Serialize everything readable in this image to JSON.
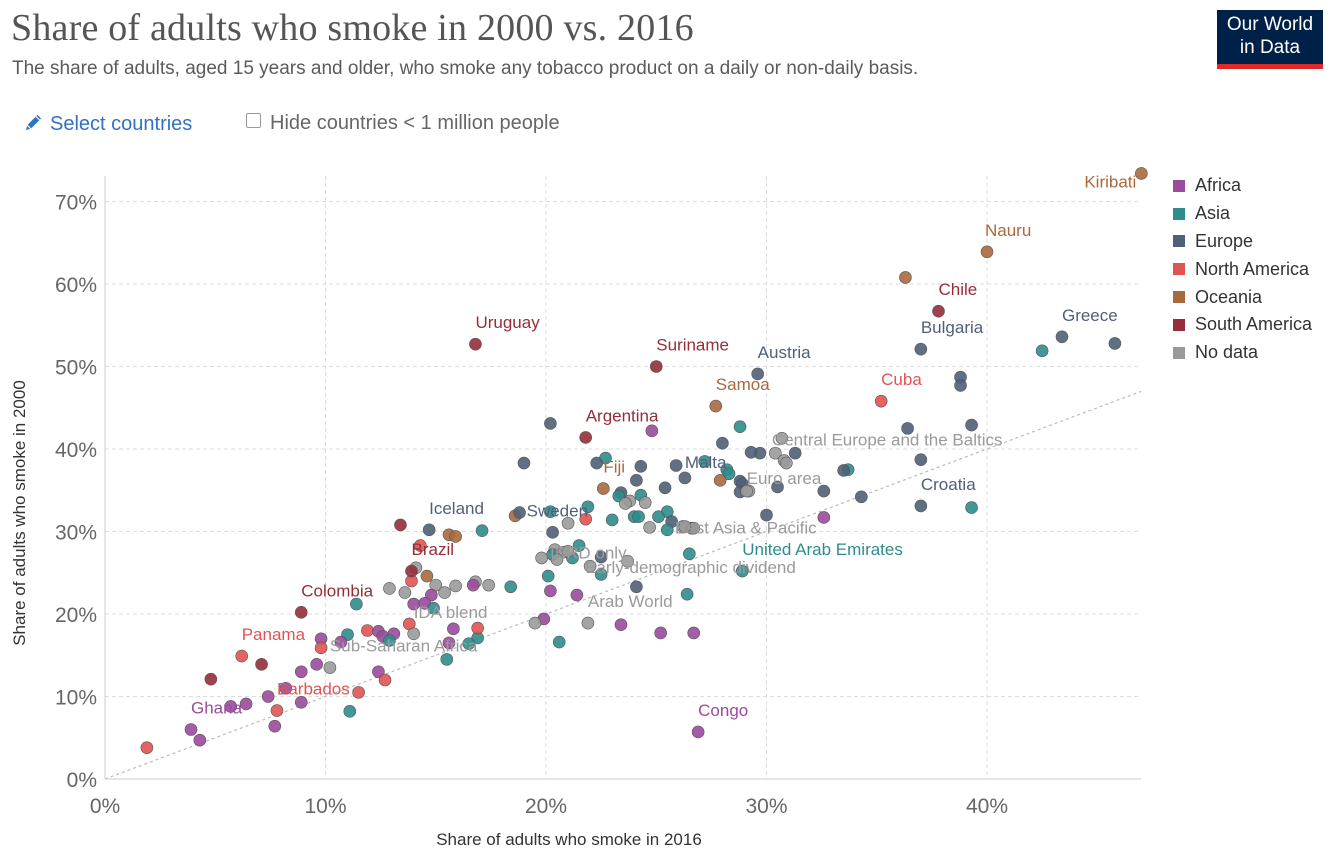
{
  "header": {
    "title": "Share of adults who smoke in 2000 vs. 2016",
    "subtitle": "The share of adults, aged 15 years and older, who smoke any tobacco product on a daily or non-daily basis.",
    "logo_line1": "Our World",
    "logo_line2": "in Data"
  },
  "controls": {
    "select_countries_label": "Select countries",
    "hide_small_label": "Hide countries < 1 million people"
  },
  "colors": {
    "Africa": "#9b4a9c",
    "Asia": "#2e8c8c",
    "Europe": "#505f78",
    "North America": "#e15353",
    "Oceania": "#a8693e",
    "South America": "#962d38",
    "No data": "#9a9a9a"
  },
  "chart_data": {
    "type": "scatter",
    "title": "Share of adults who smoke in 2000 vs. 2016",
    "xlabel": "Share of adults who smoke in 2016",
    "ylabel": "Share of adults who smoke in 2000",
    "xlim": [
      0,
      47
    ],
    "ylim": [
      0,
      73
    ],
    "x_ticks": [
      "0%",
      "10%",
      "20%",
      "30%",
      "40%"
    ],
    "y_ticks": [
      "0%",
      "10%",
      "20%",
      "30%",
      "40%",
      "50%",
      "60%",
      "70%"
    ],
    "grid": true,
    "legend_position": "right",
    "legend": [
      "Africa",
      "Asia",
      "Europe",
      "North America",
      "Oceania",
      "South America",
      "No data"
    ],
    "labeled_points": [
      {
        "label": "Kiribati",
        "region": "Oceania",
        "x": 47.0,
        "y": 73.4
      },
      {
        "label": "Nauru",
        "region": "Oceania",
        "x": 40.0,
        "y": 63.9
      },
      {
        "label": "Chile",
        "region": "South America",
        "x": 37.8,
        "y": 56.7
      },
      {
        "label": "Greece",
        "region": "Europe",
        "x": 43.4,
        "y": 53.6
      },
      {
        "label": "Bulgaria",
        "region": "Europe",
        "x": 37.0,
        "y": 52.1
      },
      {
        "label": "Uruguay",
        "region": "South America",
        "x": 16.8,
        "y": 52.7
      },
      {
        "label": "Suriname",
        "region": "South America",
        "x": 25.0,
        "y": 50.0
      },
      {
        "label": "Austria",
        "region": "Europe",
        "x": 29.6,
        "y": 49.1
      },
      {
        "label": "Cuba",
        "region": "North America",
        "x": 35.2,
        "y": 45.8
      },
      {
        "label": "Samoa",
        "region": "Oceania",
        "x": 27.7,
        "y": 45.2
      },
      {
        "label": "Argentina",
        "region": "South America",
        "x": 21.8,
        "y": 41.4
      },
      {
        "label": "Central Europe and the Baltics",
        "region": "No data",
        "x": 30.7,
        "y": 41.3
      },
      {
        "label": "Fiji",
        "region": "Oceania",
        "x": 22.6,
        "y": 35.2
      },
      {
        "label": "Malta",
        "region": "Europe",
        "x": 26.3,
        "y": 36.5
      },
      {
        "label": "Euro area",
        "region": "No data",
        "x": 29.1,
        "y": 34.9
      },
      {
        "label": "Croatia",
        "region": "Europe",
        "x": 37.0,
        "y": 33.1
      },
      {
        "label": "Sweden",
        "region": "Europe",
        "x": 20.3,
        "y": 29.9
      },
      {
        "label": "Iceland",
        "region": "Europe",
        "x": 14.7,
        "y": 30.2
      },
      {
        "label": "East Asia & Pacific",
        "region": "No data",
        "x": 26.3,
        "y": 30.6
      },
      {
        "label": "IBRD only",
        "region": "No data",
        "x": 21.0,
        "y": 27.6
      },
      {
        "label": "Brazil",
        "region": "South America",
        "x": 13.9,
        "y": 25.2
      },
      {
        "label": "United Arab Emirates",
        "region": "Asia",
        "x": 28.9,
        "y": 25.2
      },
      {
        "label": "Early-demographic dividend",
        "region": "No data",
        "x": 22.0,
        "y": 25.8
      },
      {
        "label": "Colombia",
        "region": "South America",
        "x": 8.9,
        "y": 20.2
      },
      {
        "label": "Arab World",
        "region": "No data",
        "x": 21.9,
        "y": 18.9
      },
      {
        "label": "IDA blend",
        "region": "No data",
        "x": 14.0,
        "y": 17.6
      },
      {
        "label": "Panama",
        "region": "North America",
        "x": 6.2,
        "y": 14.9
      },
      {
        "label": "Sub-Saharan Africa",
        "region": "No data",
        "x": 10.2,
        "y": 13.5
      },
      {
        "label": "Barbados",
        "region": "North America",
        "x": 7.8,
        "y": 8.3
      },
      {
        "label": "Ghana",
        "region": "Africa",
        "x": 3.9,
        "y": 6.0
      },
      {
        "label": "Congo",
        "region": "Africa",
        "x": 26.9,
        "y": 5.7
      }
    ],
    "points": [
      {
        "region": "Europe",
        "x": 45.8,
        "y": 52.8
      },
      {
        "region": "Asia",
        "x": 42.5,
        "y": 51.9
      },
      {
        "region": "Oceania",
        "x": 36.3,
        "y": 60.8
      },
      {
        "region": "Europe",
        "x": 38.8,
        "y": 48.7
      },
      {
        "region": "Europe",
        "x": 38.8,
        "y": 47.7
      },
      {
        "region": "Europe",
        "x": 39.3,
        "y": 42.9
      },
      {
        "region": "Europe",
        "x": 36.4,
        "y": 42.5
      },
      {
        "region": "Europe",
        "x": 37.0,
        "y": 38.7
      },
      {
        "region": "Asia",
        "x": 39.3,
        "y": 32.9
      },
      {
        "region": "Asia",
        "x": 33.7,
        "y": 37.5
      },
      {
        "region": "Europe",
        "x": 33.5,
        "y": 37.4
      },
      {
        "region": "Europe",
        "x": 34.3,
        "y": 34.2
      },
      {
        "region": "Europe",
        "x": 32.6,
        "y": 34.9
      },
      {
        "region": "Europe",
        "x": 31.3,
        "y": 39.5
      },
      {
        "region": "Europe",
        "x": 29.7,
        "y": 39.5
      },
      {
        "region": "No data",
        "x": 30.4,
        "y": 39.5
      },
      {
        "region": "No data",
        "x": 30.8,
        "y": 38.6
      },
      {
        "region": "No data",
        "x": 30.9,
        "y": 38.3
      },
      {
        "region": "Europe",
        "x": 30.5,
        "y": 35.4
      },
      {
        "region": "Asia",
        "x": 28.8,
        "y": 42.7
      },
      {
        "region": "Europe",
        "x": 29.3,
        "y": 39.6
      },
      {
        "region": "Europe",
        "x": 28.0,
        "y": 40.7
      },
      {
        "region": "Asia",
        "x": 27.2,
        "y": 38.5
      },
      {
        "region": "Asia",
        "x": 28.2,
        "y": 37.5
      },
      {
        "region": "Asia",
        "x": 28.3,
        "y": 37.0
      },
      {
        "region": "Oceania",
        "x": 27.9,
        "y": 36.2
      },
      {
        "region": "Europe",
        "x": 28.8,
        "y": 36.1
      },
      {
        "region": "Europe",
        "x": 28.9,
        "y": 35.8
      },
      {
        "region": "Europe",
        "x": 28.8,
        "y": 34.8
      },
      {
        "region": "No data",
        "x": 29.2,
        "y": 34.9
      },
      {
        "region": "Europe",
        "x": 30.0,
        "y": 32.0
      },
      {
        "region": "Africa",
        "x": 32.6,
        "y": 31.7
      },
      {
        "region": "Europe",
        "x": 24.3,
        "y": 37.9
      },
      {
        "region": "Europe",
        "x": 25.9,
        "y": 38.0
      },
      {
        "region": "Europe",
        "x": 24.1,
        "y": 36.2
      },
      {
        "region": "Europe",
        "x": 25.4,
        "y": 35.3
      },
      {
        "region": "Europe",
        "x": 23.4,
        "y": 34.7
      },
      {
        "region": "Asia",
        "x": 23.3,
        "y": 34.3
      },
      {
        "region": "Asia",
        "x": 24.3,
        "y": 34.4
      },
      {
        "region": "No data",
        "x": 23.8,
        "y": 33.7
      },
      {
        "region": "No data",
        "x": 24.5,
        "y": 33.5
      },
      {
        "region": "No data",
        "x": 23.6,
        "y": 33.4
      },
      {
        "region": "Asia",
        "x": 25.5,
        "y": 32.4
      },
      {
        "region": "Asia",
        "x": 25.1,
        "y": 31.8
      },
      {
        "region": "Asia",
        "x": 24.0,
        "y": 31.8
      },
      {
        "region": "Asia",
        "x": 24.2,
        "y": 31.8
      },
      {
        "region": "Europe",
        "x": 25.7,
        "y": 31.2
      },
      {
        "region": "Asia",
        "x": 23.0,
        "y": 31.4
      },
      {
        "region": "Asia",
        "x": 22.7,
        "y": 38.9
      },
      {
        "region": "Europe",
        "x": 22.3,
        "y": 38.3
      },
      {
        "region": "Europe",
        "x": 20.2,
        "y": 43.1
      },
      {
        "region": "Europe",
        "x": 19.0,
        "y": 38.3
      },
      {
        "region": "Africa",
        "x": 24.8,
        "y": 42.2
      },
      {
        "region": "Asia",
        "x": 21.9,
        "y": 33.0
      },
      {
        "region": "North America",
        "x": 21.8,
        "y": 31.5
      },
      {
        "region": "Asia",
        "x": 20.2,
        "y": 32.4
      },
      {
        "region": "No data",
        "x": 21.0,
        "y": 31.0
      },
      {
        "region": "No data",
        "x": 24.7,
        "y": 30.5
      },
      {
        "region": "Asia",
        "x": 25.5,
        "y": 30.2
      },
      {
        "region": "No data",
        "x": 26.2,
        "y": 30.6
      },
      {
        "region": "Europe",
        "x": 26.6,
        "y": 30.4
      },
      {
        "region": "No data",
        "x": 26.7,
        "y": 30.4
      },
      {
        "region": "Oceania",
        "x": 18.6,
        "y": 31.9
      },
      {
        "region": "Europe",
        "x": 18.8,
        "y": 32.3
      },
      {
        "region": "Asia",
        "x": 17.1,
        "y": 30.1
      },
      {
        "region": "South America",
        "x": 13.4,
        "y": 30.8
      },
      {
        "region": "Oceania",
        "x": 15.6,
        "y": 29.6
      },
      {
        "region": "Oceania",
        "x": 15.9,
        "y": 29.4
      },
      {
        "region": "Asia",
        "x": 21.5,
        "y": 28.3
      },
      {
        "region": "No data",
        "x": 20.4,
        "y": 27.8
      },
      {
        "region": "No data",
        "x": 20.8,
        "y": 27.5
      },
      {
        "region": "Asia",
        "x": 20.3,
        "y": 27.2
      },
      {
        "region": "No data",
        "x": 19.8,
        "y": 26.8
      },
      {
        "region": "No data",
        "x": 20.5,
        "y": 26.6
      },
      {
        "region": "Asia",
        "x": 21.2,
        "y": 26.8
      },
      {
        "region": "Europe",
        "x": 22.5,
        "y": 26.9
      },
      {
        "region": "No data",
        "x": 23.7,
        "y": 26.4
      },
      {
        "region": "Asia",
        "x": 26.5,
        "y": 27.3
      },
      {
        "region": "Asia",
        "x": 20.1,
        "y": 24.6
      },
      {
        "region": "Asia",
        "x": 22.5,
        "y": 24.8
      },
      {
        "region": "Asia",
        "x": 18.4,
        "y": 23.3
      },
      {
        "region": "No data",
        "x": 16.8,
        "y": 23.9
      },
      {
        "region": "No data",
        "x": 17.4,
        "y": 23.5
      },
      {
        "region": "No data",
        "x": 15.0,
        "y": 23.5
      },
      {
        "region": "No data",
        "x": 15.9,
        "y": 23.4
      },
      {
        "region": "Africa",
        "x": 16.7,
        "y": 23.5
      },
      {
        "region": "Europe",
        "x": 24.1,
        "y": 23.3
      },
      {
        "region": "Asia",
        "x": 26.4,
        "y": 22.4
      },
      {
        "region": "North America",
        "x": 14.3,
        "y": 28.3
      },
      {
        "region": "No data",
        "x": 14.1,
        "y": 25.6
      },
      {
        "region": "Oceania",
        "x": 14.6,
        "y": 24.6
      },
      {
        "region": "North America",
        "x": 13.9,
        "y": 24.0
      },
      {
        "region": "No data",
        "x": 12.9,
        "y": 23.1
      },
      {
        "region": "No data",
        "x": 13.6,
        "y": 22.6
      },
      {
        "region": "Africa",
        "x": 14.8,
        "y": 22.3
      },
      {
        "region": "No data",
        "x": 15.4,
        "y": 22.6
      },
      {
        "region": "Africa",
        "x": 14.0,
        "y": 21.2
      },
      {
        "region": "Africa",
        "x": 14.5,
        "y": 21.3
      },
      {
        "region": "Asia",
        "x": 14.9,
        "y": 20.7
      },
      {
        "region": "Asia",
        "x": 11.4,
        "y": 21.2
      },
      {
        "region": "Africa",
        "x": 20.2,
        "y": 22.8
      },
      {
        "region": "Africa",
        "x": 21.4,
        "y": 22.3
      },
      {
        "region": "Africa",
        "x": 19.9,
        "y": 19.4
      },
      {
        "region": "No data",
        "x": 19.5,
        "y": 18.9
      },
      {
        "region": "Africa",
        "x": 23.4,
        "y": 18.7
      },
      {
        "region": "Africa",
        "x": 25.2,
        "y": 17.7
      },
      {
        "region": "Africa",
        "x": 26.7,
        "y": 17.7
      },
      {
        "region": "Asia",
        "x": 20.6,
        "y": 16.6
      },
      {
        "region": "Asia",
        "x": 16.9,
        "y": 17.1
      },
      {
        "region": "Asia",
        "x": 16.5,
        "y": 16.4
      },
      {
        "region": "North America",
        "x": 16.9,
        "y": 18.3
      },
      {
        "region": "Africa",
        "x": 15.8,
        "y": 18.2
      },
      {
        "region": "Africa",
        "x": 15.6,
        "y": 16.5
      },
      {
        "region": "North America",
        "x": 13.8,
        "y": 18.8
      },
      {
        "region": "North America",
        "x": 11.9,
        "y": 18.0
      },
      {
        "region": "Africa",
        "x": 12.4,
        "y": 17.9
      },
      {
        "region": "Africa",
        "x": 12.6,
        "y": 17.3
      },
      {
        "region": "Africa",
        "x": 13.1,
        "y": 17.6
      },
      {
        "region": "Asia",
        "x": 12.9,
        "y": 16.8
      },
      {
        "region": "Asia",
        "x": 11.0,
        "y": 17.5
      },
      {
        "region": "Africa",
        "x": 9.8,
        "y": 17.0
      },
      {
        "region": "Africa",
        "x": 10.7,
        "y": 16.6
      },
      {
        "region": "North America",
        "x": 9.8,
        "y": 15.9
      },
      {
        "region": "Asia",
        "x": 15.5,
        "y": 14.5
      },
      {
        "region": "Africa",
        "x": 12.4,
        "y": 13.0
      },
      {
        "region": "North America",
        "x": 12.7,
        "y": 12.0
      },
      {
        "region": "Africa",
        "x": 9.6,
        "y": 13.9
      },
      {
        "region": "Africa",
        "x": 8.9,
        "y": 13.0
      },
      {
        "region": "South America",
        "x": 7.1,
        "y": 13.9
      },
      {
        "region": "South America",
        "x": 4.8,
        "y": 12.1
      },
      {
        "region": "North America",
        "x": 11.5,
        "y": 10.5
      },
      {
        "region": "Asia",
        "x": 11.1,
        "y": 8.2
      },
      {
        "region": "Africa",
        "x": 8.2,
        "y": 11.0
      },
      {
        "region": "Africa",
        "x": 7.4,
        "y": 10.0
      },
      {
        "region": "Africa",
        "x": 8.9,
        "y": 9.3
      },
      {
        "region": "Africa",
        "x": 5.7,
        "y": 8.8
      },
      {
        "region": "Africa",
        "x": 6.4,
        "y": 9.1
      },
      {
        "region": "Africa",
        "x": 7.7,
        "y": 6.4
      },
      {
        "region": "Africa",
        "x": 4.3,
        "y": 4.7
      },
      {
        "region": "North America",
        "x": 1.9,
        "y": 3.8
      }
    ]
  }
}
